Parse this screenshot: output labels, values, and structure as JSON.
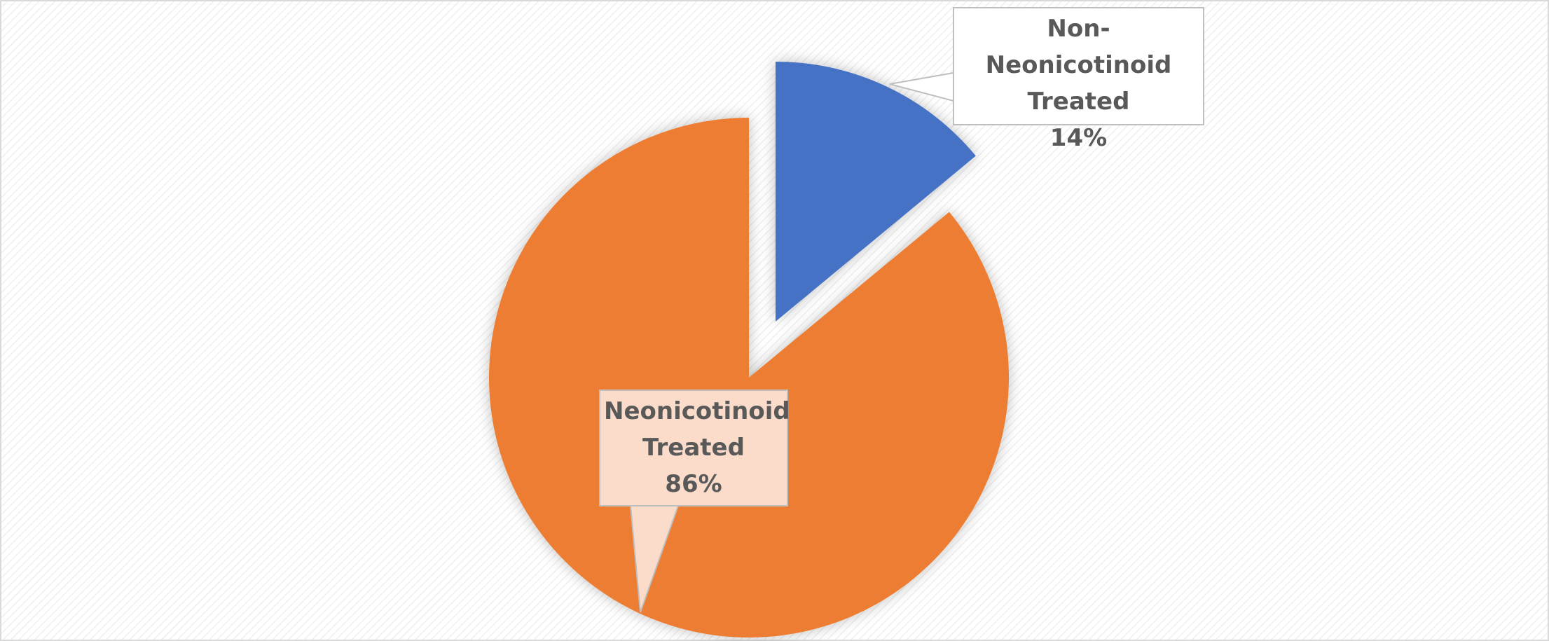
{
  "chart_data": {
    "type": "pie",
    "categories": [
      "Non-Neonicotinoid Treated",
      "Neonicotinoid Treated"
    ],
    "values": [
      14,
      86
    ],
    "value_labels": [
      "14%",
      "86%"
    ],
    "colors": [
      "#4472c4",
      "#ed7d31"
    ]
  }
}
